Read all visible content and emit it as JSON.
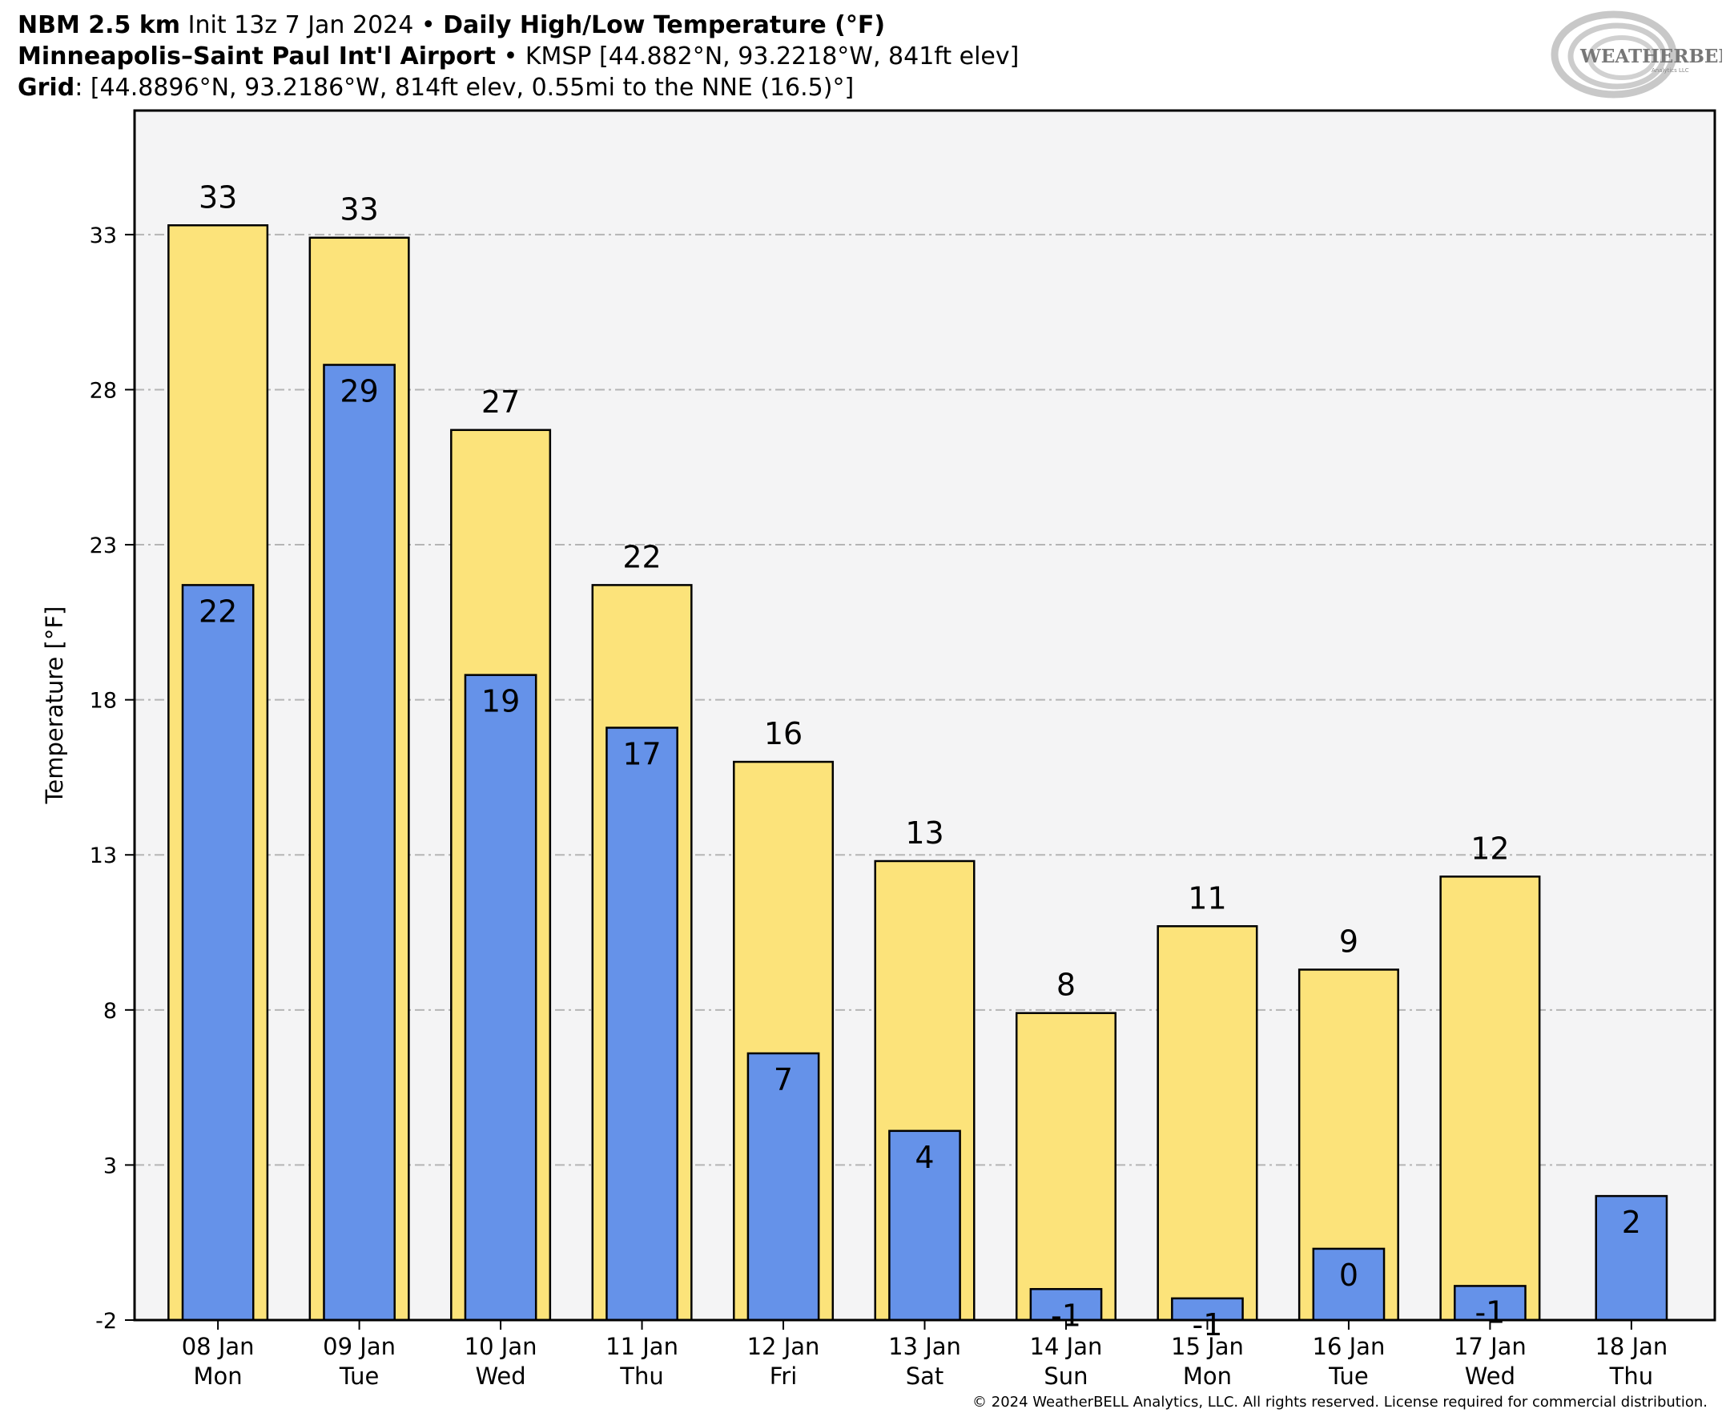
{
  "header": {
    "line1": {
      "model": "NBM 2.5 km",
      "init": "Init 13z 7 Jan 2024",
      "sep": "•",
      "product": "Daily High/Low Temperature (°F)"
    },
    "line2": {
      "station": "Minneapolis–Saint Paul Int'l Airport",
      "sep": "•",
      "details": "KMSP [44.882°N, 93.2218°W, 841ft elev]"
    },
    "line3": {
      "label": "Grid",
      "details": ": [44.8896°N, 93.2186°W, 814ft elev, 0.55mi to the NNE (16.5)°]"
    }
  },
  "logo": {
    "text": "WEATHERBELL",
    "subtext": "Analytics LLC"
  },
  "footer": {
    "copyright": "© 2024 WeatherBELL Analytics, LLC. All rights reserved. License required for commercial distribution."
  },
  "colors": {
    "high": "#fce37a",
    "low": "#6592e9",
    "plot_bg": "#f4f4f5",
    "grid": "#b5b5b5"
  },
  "chart_data": {
    "type": "bar",
    "title": "",
    "xlabel": "",
    "ylabel": "Temperature [°F]",
    "ylim": [
      -2,
      37
    ],
    "yticks": [
      -2,
      3,
      8,
      13,
      18,
      23,
      28,
      33
    ],
    "grid": "horizontal dashed",
    "categories": [
      {
        "date": "08 Jan",
        "day": "Mon"
      },
      {
        "date": "09 Jan",
        "day": "Tue"
      },
      {
        "date": "10 Jan",
        "day": "Wed"
      },
      {
        "date": "11 Jan",
        "day": "Thu"
      },
      {
        "date": "12 Jan",
        "day": "Fri"
      },
      {
        "date": "13 Jan",
        "day": "Sat"
      },
      {
        "date": "14 Jan",
        "day": "Sun"
      },
      {
        "date": "15 Jan",
        "day": "Mon"
      },
      {
        "date": "16 Jan",
        "day": "Tue"
      },
      {
        "date": "17 Jan",
        "day": "Wed"
      },
      {
        "date": "18 Jan",
        "day": "Thu"
      }
    ],
    "series": [
      {
        "key": "high",
        "values": [
          33.3,
          32.9,
          26.7,
          21.7,
          16.0,
          12.8,
          7.9,
          10.7,
          9.3,
          12.3,
          null
        ],
        "labels": [
          "33",
          "33",
          "27",
          "22",
          "16",
          "13",
          "8",
          "11",
          "9",
          "12",
          ""
        ]
      },
      {
        "key": "low",
        "values": [
          21.7,
          28.8,
          18.8,
          17.1,
          6.6,
          4.1,
          -1.0,
          -1.3,
          0.3,
          -0.9,
          2.0
        ],
        "labels": [
          "22",
          "29",
          "19",
          "17",
          "7",
          "4",
          "-1",
          "-1",
          "0",
          "-1",
          "2"
        ]
      }
    ]
  }
}
